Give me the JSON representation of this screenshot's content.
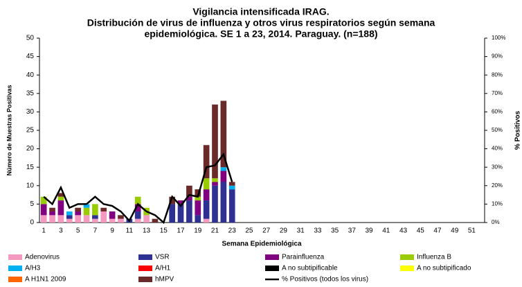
{
  "chart_data": {
    "type": "bar",
    "title": [
      "Vigilancia intensificada IRAG.",
      "Distribución de virus de influenza y otros virus respiratorios según semana",
      "epidemiológica. SE 1 a 23, 2014. Paraguay. (n=188)"
    ],
    "x_label": "Semana Epidemiológica",
    "y_label": "Número de Muestras Positivas",
    "y2_label": "% Positivos",
    "categories": [
      "1",
      null,
      "3",
      null,
      "5",
      null,
      "7",
      null,
      "9",
      null,
      "11",
      null,
      "13",
      null,
      "15",
      null,
      "17",
      null,
      "19",
      null,
      "21",
      null,
      "23",
      null,
      "25",
      null,
      "27",
      null,
      "29",
      null,
      "31",
      null,
      "33",
      null,
      "35",
      null,
      "37",
      null,
      "39",
      null,
      "41",
      null,
      "43",
      null,
      "45",
      null,
      "47",
      null,
      "49",
      null,
      "51",
      null
    ],
    "ylim": [
      0,
      50
    ],
    "yticks": [
      0,
      5,
      10,
      15,
      20,
      25,
      30,
      35,
      40,
      45,
      50
    ],
    "y2lim": [
      0,
      100
    ],
    "y2ticks": [
      {
        "value": 0,
        "label": "0%"
      },
      {
        "value": 10,
        "label": "10%"
      },
      {
        "value": 20,
        "label": "20%"
      },
      {
        "value": 30,
        "label": "30%"
      },
      {
        "value": 40,
        "label": "40%"
      },
      {
        "value": 50,
        "label": "50%"
      },
      {
        "value": 60,
        "label": "60%"
      },
      {
        "value": 70,
        "label": "70%"
      },
      {
        "value": 80,
        "label": "80%"
      },
      {
        "value": 90,
        "label": "90%"
      },
      {
        "value": 100,
        "label": "100%"
      }
    ],
    "stacked": true,
    "series": [
      {
        "name": "Adenovirus",
        "color": "#f49ac1",
        "values": [
          2,
          2,
          2,
          1,
          2,
          2,
          1,
          3,
          1,
          1,
          0,
          1,
          2,
          0,
          0,
          0,
          0,
          0,
          0,
          1,
          0,
          0,
          0,
          null,
          null,
          null,
          null,
          null,
          null,
          null,
          null,
          null,
          null,
          null,
          null,
          null,
          null,
          null,
          null,
          null,
          null,
          null,
          null,
          null,
          null,
          null,
          null,
          null,
          null,
          null,
          null,
          null
        ]
      },
      {
        "name": "VSR",
        "color": "#2e3192",
        "values": [
          0,
          0,
          0,
          1,
          0,
          0,
          1,
          0,
          0,
          0,
          1,
          2,
          0,
          0,
          0,
          5,
          5,
          6,
          2,
          5,
          10,
          11,
          9,
          null,
          null,
          null,
          null,
          null,
          null,
          null,
          null,
          null,
          null,
          null,
          null,
          null,
          null,
          null,
          null,
          null,
          null,
          null,
          null,
          null,
          null,
          null,
          null,
          null,
          null,
          null,
          null,
          null
        ]
      },
      {
        "name": "Parainfluenza",
        "color": "#800080",
        "values": [
          3,
          1,
          4,
          0,
          1,
          0,
          0,
          0,
          2,
          0,
          0,
          2,
          0,
          0,
          0,
          0,
          1,
          1,
          4,
          3,
          1,
          3,
          0,
          null,
          null,
          null,
          null,
          null,
          null,
          null,
          null,
          null,
          null,
          null,
          null,
          null,
          null,
          null,
          null,
          null,
          null,
          null,
          null,
          null,
          null,
          null,
          null,
          null,
          null,
          null,
          null,
          null
        ]
      },
      {
        "name": "Influenza  B",
        "color": "#99cc00",
        "values": [
          2,
          0,
          1,
          0,
          0,
          2,
          3,
          0,
          0,
          0,
          0,
          2,
          2,
          0,
          0,
          0,
          0,
          0,
          1,
          3,
          1,
          0,
          0,
          null,
          null,
          null,
          null,
          null,
          null,
          null,
          null,
          null,
          null,
          null,
          null,
          null,
          null,
          null,
          null,
          null,
          null,
          null,
          null,
          null,
          null,
          null,
          null,
          null,
          null,
          null,
          null,
          null
        ]
      },
      {
        "name": "A/H3",
        "color": "#00b0f0",
        "values": [
          0,
          0,
          0,
          1,
          0,
          1,
          0,
          0,
          0,
          0,
          0,
          0,
          0,
          0,
          0,
          0,
          0,
          0,
          0,
          0,
          0,
          1,
          1,
          null,
          null,
          null,
          null,
          null,
          null,
          null,
          null,
          null,
          null,
          null,
          null,
          null,
          null,
          null,
          null,
          null,
          null,
          null,
          null,
          null,
          null,
          null,
          null,
          null,
          null,
          null,
          null,
          null
        ]
      },
      {
        "name": "A/H1",
        "color": "#ff0000",
        "values": [
          0,
          0,
          0,
          0,
          0,
          0,
          0,
          0,
          0,
          0,
          0,
          0,
          0,
          0,
          0,
          0,
          0,
          0,
          0,
          0,
          0,
          0,
          0,
          null,
          null,
          null,
          null,
          null,
          null,
          null,
          null,
          null,
          null,
          null,
          null,
          null,
          null,
          null,
          null,
          null,
          null,
          null,
          null,
          null,
          null,
          null,
          null,
          null,
          null,
          null,
          null,
          null
        ]
      },
      {
        "name": "A no subtipificable",
        "color": "#000000",
        "values": [
          0,
          0,
          0,
          0,
          0,
          0,
          0,
          0,
          0,
          0,
          0,
          0,
          0,
          0,
          0,
          0,
          0,
          0,
          0,
          0,
          0,
          0,
          0,
          null,
          null,
          null,
          null,
          null,
          null,
          null,
          null,
          null,
          null,
          null,
          null,
          null,
          null,
          null,
          null,
          null,
          null,
          null,
          null,
          null,
          null,
          null,
          null,
          null,
          null,
          null,
          null,
          null
        ]
      },
      {
        "name": "A no subtipificado",
        "color": "#ffff00",
        "values": [
          0,
          0,
          0,
          0,
          0,
          0,
          0,
          0,
          0,
          0,
          0,
          0,
          0,
          0,
          0,
          0,
          0,
          0,
          0,
          0,
          0,
          0,
          0,
          null,
          null,
          null,
          null,
          null,
          null,
          null,
          null,
          null,
          null,
          null,
          null,
          null,
          null,
          null,
          null,
          null,
          null,
          null,
          null,
          null,
          null,
          null,
          null,
          null,
          null,
          null,
          null,
          null
        ]
      },
      {
        "name": "A H1N1 2009",
        "color": "#ff6600",
        "values": [
          0,
          0,
          0,
          0,
          0,
          0,
          0,
          0,
          0,
          0,
          0,
          0,
          0,
          0,
          0,
          0,
          0,
          0,
          0,
          0,
          0,
          0,
          0,
          null,
          null,
          null,
          null,
          null,
          null,
          null,
          null,
          null,
          null,
          null,
          null,
          null,
          null,
          null,
          null,
          null,
          null,
          null,
          null,
          null,
          null,
          null,
          null,
          null,
          null,
          null,
          null,
          null
        ]
      },
      {
        "name": "hMPV",
        "color": "#6b2a2a",
        "values": [
          0,
          1,
          1,
          0,
          1,
          0,
          0,
          1,
          0,
          1,
          0,
          0,
          0,
          1,
          0,
          2,
          0,
          3,
          2,
          9,
          20,
          18,
          1,
          null,
          null,
          null,
          null,
          null,
          null,
          null,
          null,
          null,
          null,
          null,
          null,
          null,
          null,
          null,
          null,
          null,
          null,
          null,
          null,
          null,
          null,
          null,
          null,
          null,
          null,
          null,
          null,
          null
        ]
      },
      {
        "name": "% Positivos (todos los virus)",
        "color": "#000000",
        "type": "line",
        "axis": "y2",
        "values": [
          14,
          10,
          19,
          8,
          10,
          10,
          14,
          10,
          9,
          6,
          1,
          10,
          6,
          4,
          0,
          14,
          9,
          15,
          14,
          30,
          31,
          37,
          22,
          null,
          null,
          null,
          null,
          null,
          null,
          null,
          null,
          null,
          null,
          null,
          null,
          null,
          null,
          null,
          null,
          null,
          null,
          null,
          null,
          null,
          null,
          null,
          null,
          null,
          null,
          null,
          null,
          null
        ]
      }
    ]
  }
}
